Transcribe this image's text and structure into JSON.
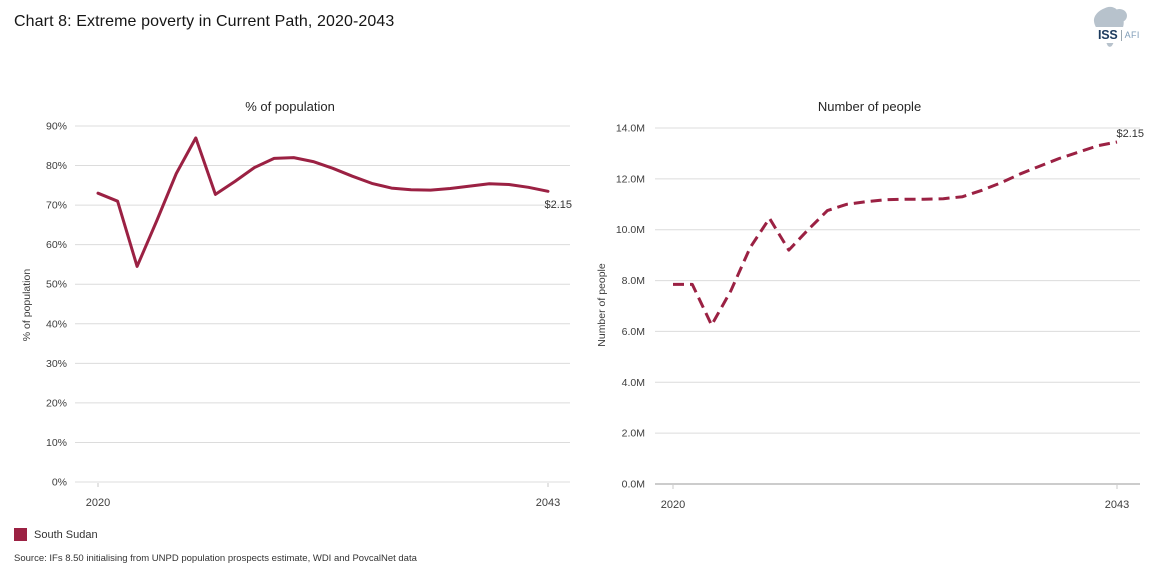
{
  "header": {
    "title": "Chart 8: Extreme poverty in Current Path, 2020-2043"
  },
  "logo": {
    "org": "ISS",
    "unit": "AFI"
  },
  "colors": {
    "line": "#9B2143",
    "grid": "#DCDCDC",
    "axis": "#999999",
    "tick": "#C9C9C9",
    "text": "#3d3d3d"
  },
  "chart_data": [
    {
      "type": "line",
      "title": "% of population",
      "ylabel": "% of population",
      "xlabel": "",
      "ylim": [
        0,
        90
      ],
      "grid": "horizontal-only",
      "legend_position": "none",
      "x": [
        2020,
        2021,
        2022,
        2023,
        2024,
        2025,
        2026,
        2027,
        2028,
        2029,
        2030,
        2031,
        2032,
        2033,
        2034,
        2035,
        2036,
        2037,
        2038,
        2039,
        2040,
        2041,
        2042,
        2043
      ],
      "series": [
        {
          "name": "South Sudan",
          "line_style": "solid",
          "color": "#9B2143",
          "values": [
            73,
            71,
            54.5,
            66,
            78,
            87,
            72.7,
            76,
            79.5,
            81.8,
            82,
            81,
            79.3,
            77.3,
            75.5,
            74.3,
            73.9,
            73.8,
            74.2,
            74.8,
            75.4,
            75.2,
            74.5,
            73.5
          ]
        }
      ],
      "yticks": [
        {
          "v": 0,
          "label": "0%"
        },
        {
          "v": 10,
          "label": "10%"
        },
        {
          "v": 20,
          "label": "20%"
        },
        {
          "v": 30,
          "label": "30%"
        },
        {
          "v": 40,
          "label": "40%"
        },
        {
          "v": 50,
          "label": "50%"
        },
        {
          "v": 60,
          "label": "60%"
        },
        {
          "v": 70,
          "label": "70%"
        },
        {
          "v": 80,
          "label": "80%"
        },
        {
          "v": 90,
          "label": "90%"
        }
      ],
      "xticks": [
        {
          "x": 2020,
          "label": "2020"
        },
        {
          "x": 2043,
          "label": "2043"
        }
      ],
      "annotation": {
        "text": "$2.15",
        "position": "end-below"
      }
    },
    {
      "type": "line",
      "title": "Number of people",
      "ylabel": "Number of people",
      "xlabel": "",
      "ylim": [
        0,
        14
      ],
      "grid": "horizontal-only",
      "legend_position": "none",
      "x": [
        2020,
        2021,
        2022,
        2023,
        2024,
        2025,
        2026,
        2027,
        2028,
        2029,
        2030,
        2031,
        2032,
        2033,
        2034,
        2035,
        2036,
        2037,
        2038,
        2039,
        2040,
        2041,
        2042,
        2043
      ],
      "series": [
        {
          "name": "South Sudan",
          "line_style": "dashed",
          "color": "#9B2143",
          "values": [
            7.85,
            7.85,
            6.25,
            7.6,
            9.3,
            10.45,
            9.2,
            10.0,
            10.75,
            11.0,
            11.1,
            11.18,
            11.2,
            11.2,
            11.22,
            11.3,
            11.55,
            11.85,
            12.2,
            12.5,
            12.8,
            13.05,
            13.3,
            13.45
          ]
        }
      ],
      "yticks": [
        {
          "v": 0,
          "label": "0.0M"
        },
        {
          "v": 2,
          "label": "2.0M"
        },
        {
          "v": 4,
          "label": "4.0M"
        },
        {
          "v": 6,
          "label": "6.0M"
        },
        {
          "v": 8,
          "label": "8.0M"
        },
        {
          "v": 10,
          "label": "10.0M"
        },
        {
          "v": 12,
          "label": "12.0M"
        },
        {
          "v": 14,
          "label": "14.0M"
        }
      ],
      "xticks": [
        {
          "x": 2020,
          "label": "2020"
        },
        {
          "x": 2043,
          "label": "2043"
        }
      ],
      "annotation": {
        "text": "$2.15",
        "position": "end-above"
      }
    }
  ],
  "legend": {
    "swatch_color": "#9B2143",
    "label": "South Sudan"
  },
  "source": "Source: IFs 8.50 initialising from UNPD population prospects estimate, WDI and PovcalNet data"
}
